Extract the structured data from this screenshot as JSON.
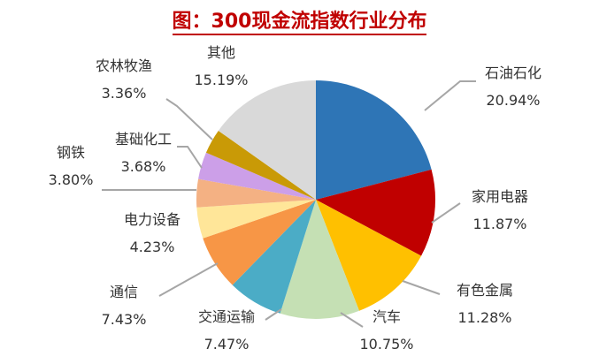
{
  "chart_data": {
    "type": "pie",
    "title": "图：300现金流指数行业分布",
    "slices": [
      {
        "label": "石油石化",
        "value": 20.94,
        "display": "20.94%",
        "color": "#2E75B6"
      },
      {
        "label": "家用电器",
        "value": 11.87,
        "display": "11.87%",
        "color": "#C00000"
      },
      {
        "label": "有色金属",
        "value": 11.28,
        "display": "11.28%",
        "color": "#FFC000"
      },
      {
        "label": "汽车",
        "value": 10.75,
        "display": "10.75%",
        "color": "#C5E0B4"
      },
      {
        "label": "交通运输",
        "value": 7.47,
        "display": "7.47%",
        "color": "#4BACC6"
      },
      {
        "label": "通信",
        "value": 7.43,
        "display": "7.43%",
        "color": "#F79646"
      },
      {
        "label": "电力设备",
        "value": 4.23,
        "display": "4.23%",
        "color": "#FFE699"
      },
      {
        "label": "钢铁",
        "value": 3.8,
        "display": "3.80%",
        "color": "#F4B183"
      },
      {
        "label": "基础化工",
        "value": 3.68,
        "display": "3.68%",
        "color": "#CC9FE8"
      },
      {
        "label": "农林牧渔",
        "value": 3.36,
        "display": "3.36%",
        "color": "#C99A06"
      },
      {
        "label": "其他",
        "value": 15.19,
        "display": "15.19%",
        "color": "#D9D9D9"
      }
    ]
  }
}
